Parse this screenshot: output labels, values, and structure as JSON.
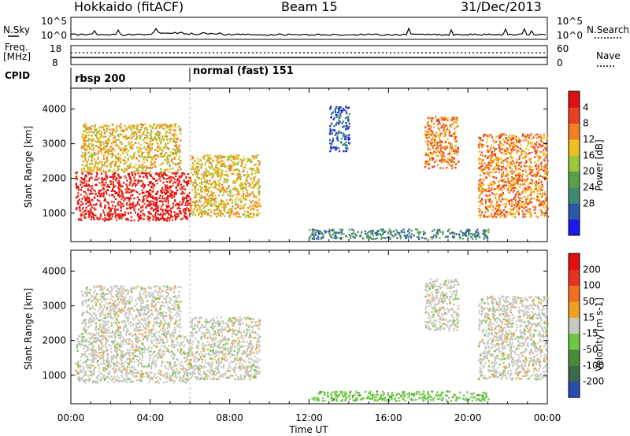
{
  "header": {
    "station": "Hokkaido (fitACF)",
    "beam": "Beam 15",
    "date": "31/Dec/2013"
  },
  "noise_panel": {
    "left_label": "N.Sky",
    "right_label": "N.Search",
    "left_ticks": [
      "10^5",
      "10^0"
    ],
    "right_ticks": [
      "10^5",
      "10^0"
    ]
  },
  "freq_panel": {
    "left_label_1": "Freq.",
    "left_label_2": "[MHz]",
    "right_label": "Nave",
    "left_ticks": [
      "18",
      "8"
    ],
    "right_ticks": [
      "60",
      "0"
    ]
  },
  "cpid_panel": {
    "label": "CPID",
    "modes": [
      {
        "name": "rbsp 200",
        "start_hour": 0
      },
      {
        "name": "normal (fast) 151",
        "start_hour": 6
      }
    ]
  },
  "x_axis": {
    "label": "Time UT",
    "ticks": [
      "00:00",
      "04:00",
      "08:00",
      "12:00",
      "16:00",
      "20:00",
      "00:00"
    ]
  },
  "chart_data": [
    {
      "type": "heatmap",
      "name": "power",
      "ylabel": "Slant Range [km]",
      "yticks": [
        "1000",
        "2000",
        "3000",
        "4000"
      ],
      "ylim_km": [
        180,
        4600
      ],
      "xlim_hours": [
        0,
        24
      ],
      "colorbar": {
        "label": "Power [dB]",
        "tick_labels": [
          "4",
          "8",
          "12",
          "16",
          "20",
          "24",
          "28"
        ],
        "colors": [
          "#1a1aee",
          "#2c56a8",
          "#3e8a70",
          "#5aa04a",
          "#9ac83a",
          "#f0c020",
          "#f08020",
          "#e84020",
          "#e01010"
        ]
      },
      "regions": [
        {
          "t": [
            0.2,
            6.0
          ],
          "r": [
            800,
            2200
          ],
          "level": 8
        },
        {
          "t": [
            0.5,
            5.5
          ],
          "r": [
            2200,
            3600
          ],
          "level": 5
        },
        {
          "t": [
            6.0,
            9.5
          ],
          "r": [
            900,
            2700
          ],
          "level": 5
        },
        {
          "t": [
            12.0,
            21.0
          ],
          "r": [
            280,
            560
          ],
          "level": 2
        },
        {
          "t": [
            17.8,
            19.5
          ],
          "r": [
            2300,
            3800
          ],
          "level": 6
        },
        {
          "t": [
            20.5,
            24.0
          ],
          "r": [
            900,
            3300
          ],
          "level": 6
        },
        {
          "t": [
            13.0,
            14.0
          ],
          "r": [
            2800,
            4100
          ],
          "level": 1
        }
      ]
    },
    {
      "type": "heatmap",
      "name": "velocity",
      "ylabel": "Slant Range [km]",
      "yticks": [
        "1000",
        "2000",
        "3000",
        "4000"
      ],
      "ylim_km": [
        180,
        4600
      ],
      "xlim_hours": [
        0,
        24
      ],
      "colorbar": {
        "label": "Velocity [m s-1]",
        "tick_labels": [
          "200",
          "100",
          "50",
          "15",
          "-15",
          "-50",
          "-100",
          "-200"
        ],
        "colors": [
          "#2a4bb0",
          "#3a6a4a",
          "#4a8a3a",
          "#6cc840",
          "#c8c8c0",
          "#f0a020",
          "#f07020",
          "#e83020",
          "#e01010"
        ]
      },
      "regions": [
        {
          "t": [
            0.2,
            6.0
          ],
          "r": [
            800,
            2200
          ],
          "level": 4
        },
        {
          "t": [
            0.5,
            5.5
          ],
          "r": [
            2200,
            3600
          ],
          "level": 4
        },
        {
          "t": [
            6.0,
            9.5
          ],
          "r": [
            900,
            2700
          ],
          "level": 4
        },
        {
          "t": [
            12.0,
            21.0
          ],
          "r": [
            280,
            560
          ],
          "level": 3
        },
        {
          "t": [
            17.8,
            19.5
          ],
          "r": [
            2300,
            3800
          ],
          "level": 4
        },
        {
          "t": [
            20.5,
            24.0
          ],
          "r": [
            900,
            3300
          ],
          "level": 4
        }
      ]
    }
  ]
}
